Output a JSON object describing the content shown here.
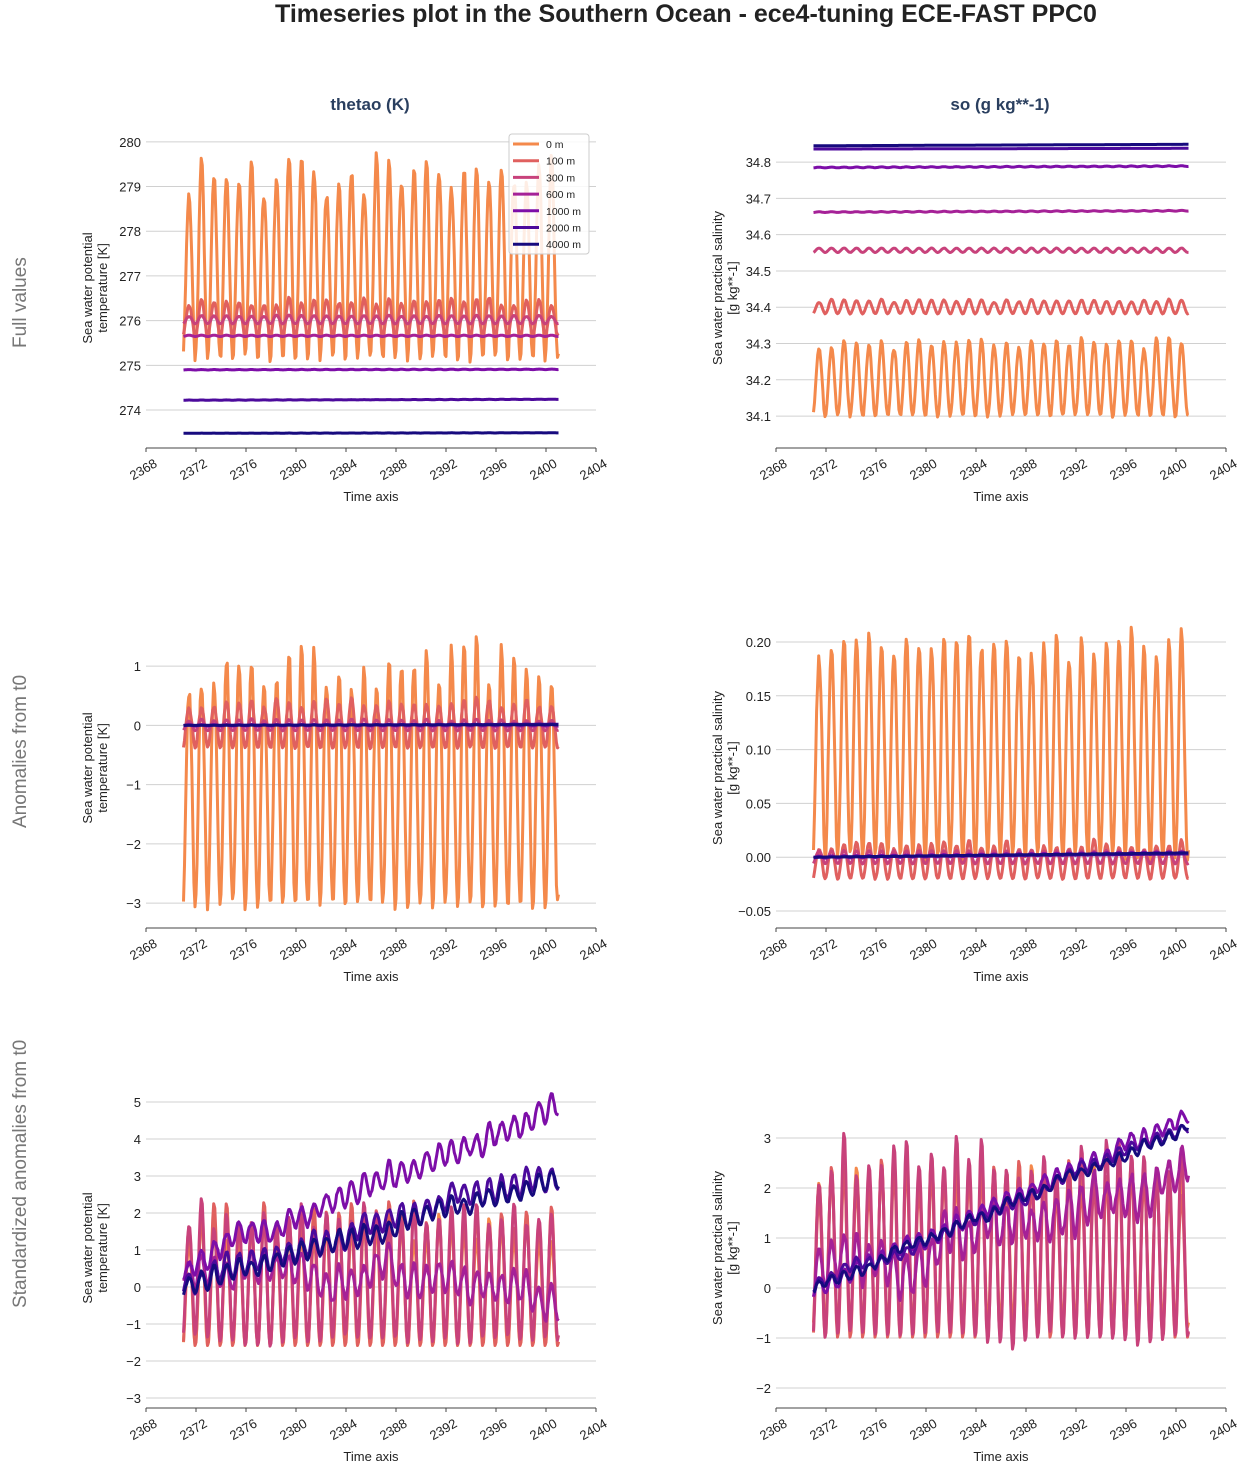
{
  "title": "Timeseries plot in the Southern Ocean - ece4-tuning ECE-FAST PPC0",
  "column_titles": [
    "thetao (K)",
    "so (g kg**-1)"
  ],
  "row_labels": [
    "Full values",
    "Anomalies from t0",
    "Standardized anomalies from t0"
  ],
  "legend": [
    {
      "label": "0 m",
      "color": "#f4894b"
    },
    {
      "label": "100 m",
      "color": "#e0605f"
    },
    {
      "label": "300 m",
      "color": "#c8427b"
    },
    {
      "label": "600 m",
      "color": "#a52197"
    },
    {
      "label": "1000 m",
      "color": "#7d0ea8"
    },
    {
      "label": "2000 m",
      "color": "#4c0a9c"
    },
    {
      "label": "4000 m",
      "color": "#170a7e"
    }
  ],
  "chart_data": [
    {
      "type": "line",
      "panel": "thetao-full",
      "xlabel": "Time axis",
      "ylabel": [
        "Sea water potential",
        "temperature [K]"
      ],
      "xlim": [
        2368,
        2404
      ],
      "xticks": [
        2368,
        2372,
        2376,
        2380,
        2384,
        2388,
        2392,
        2396,
        2400,
        2404
      ],
      "ylim": [
        273.15,
        280.31
      ],
      "yticks": [
        274,
        275,
        276,
        277,
        278,
        279,
        280
      ],
      "ytick_labels": [
        "274",
        "275",
        "276",
        "277",
        "278",
        "279",
        "280"
      ],
      "x_range": [
        2371,
        2401
      ],
      "series": [
        {
          "mean": 277.2,
          "amp": 2.05,
          "peak_var": 0.5,
          "trend": 0,
          "walk": 0
        },
        {
          "mean": 276.05,
          "amp": 0.38,
          "peak_var": 0.1,
          "trend": 0,
          "walk": 0
        },
        {
          "mean": 276.02,
          "amp": 0.09,
          "peak_var": 0.02,
          "trend": 0,
          "walk": 0
        },
        {
          "mean": 275.66,
          "amp": 0.015,
          "peak_var": 0,
          "trend": 0,
          "walk": 0
        },
        {
          "mean": 274.9,
          "amp": 0.005,
          "peak_var": 0,
          "trend": 0.01,
          "walk": 0
        },
        {
          "mean": 274.22,
          "amp": 0.003,
          "peak_var": 0,
          "trend": 0.02,
          "walk": 0
        },
        {
          "mean": 273.48,
          "amp": 0.002,
          "peak_var": 0,
          "trend": 0.01,
          "walk": 0
        }
      ],
      "legend_placement": "top-right"
    },
    {
      "type": "line",
      "panel": "so-full",
      "xlabel": "Time axis",
      "ylabel": [
        "Sea water practical salinity",
        "[g kg**-1]"
      ],
      "xlim": [
        2368,
        2404
      ],
      "xticks": [
        2368,
        2372,
        2376,
        2380,
        2384,
        2388,
        2392,
        2396,
        2400,
        2404
      ],
      "ylim": [
        34.012,
        34.894
      ],
      "yticks": [
        34.1,
        34.2,
        34.3,
        34.4,
        34.5,
        34.6,
        34.7,
        34.8
      ],
      "ytick_labels": [
        "34.1",
        "34.2",
        "34.3",
        "34.4",
        "34.5",
        "34.6",
        "34.7",
        "34.8"
      ],
      "x_range": [
        2371,
        2401
      ],
      "series": [
        {
          "mean": 34.2,
          "amp": 0.1,
          "peak_var": 0.015,
          "trend": 0,
          "walk": 0
        },
        {
          "mean": 34.4,
          "amp": 0.018,
          "peak_var": 0.005,
          "trend": 0,
          "walk": 0
        },
        {
          "mean": 34.557,
          "amp": 0.006,
          "peak_var": 0,
          "trend": 0,
          "walk": 0
        },
        {
          "mean": 34.662,
          "amp": 0.001,
          "peak_var": 0,
          "trend": 0.004,
          "walk": 0
        },
        {
          "mean": 34.785,
          "amp": 0.001,
          "peak_var": 0,
          "trend": 0.004,
          "walk": 0
        },
        {
          "mean": 34.836,
          "amp": 0,
          "peak_var": 0,
          "trend": 0.002,
          "walk": 0
        },
        {
          "mean": 34.845,
          "amp": 0,
          "peak_var": 0,
          "trend": 0.004,
          "walk": 0
        }
      ]
    },
    {
      "type": "line",
      "panel": "thetao-anomalies",
      "xlabel": "Time axis",
      "ylabel": [
        "Sea water potential",
        "temperature [K]"
      ],
      "xlim": [
        2368,
        2404
      ],
      "xticks": [
        2368,
        2372,
        2376,
        2380,
        2384,
        2388,
        2392,
        2396,
        2400,
        2404
      ],
      "ylim": [
        -3.42,
        1.98
      ],
      "yticks": [
        -3,
        -2,
        -1,
        0,
        1
      ],
      "ytick_labels": [
        "−3",
        "−2",
        "−1",
        "0",
        "1"
      ],
      "x_range": [
        2371,
        2401
      ],
      "series": [
        {
          "mean": -1.0,
          "amp": 2.05,
          "peak_var": 0.5,
          "trend": 0,
          "walk": 0
        },
        {
          "mean": 0.0,
          "amp": 0.38,
          "peak_var": 0.1,
          "trend": 0,
          "walk": 0
        },
        {
          "mean": 0.0,
          "amp": 0.09,
          "peak_var": 0.02,
          "trend": 0,
          "walk": 0
        },
        {
          "mean": 0,
          "amp": 0.015,
          "peak_var": 0,
          "trend": 0,
          "walk": 0
        },
        {
          "mean": 0,
          "amp": 0.005,
          "peak_var": 0,
          "trend": 0.01,
          "walk": 0
        },
        {
          "mean": 0,
          "amp": 0.003,
          "peak_var": 0,
          "trend": 0.02,
          "walk": 0
        },
        {
          "mean": 0,
          "amp": 0.002,
          "peak_var": 0,
          "trend": 0.01,
          "walk": 0
        }
      ]
    },
    {
      "type": "line",
      "panel": "so-anomalies",
      "xlabel": "Time axis",
      "ylabel": [
        "Sea water practical salinity",
        "[g kg**-1]"
      ],
      "xlim": [
        2368,
        2404
      ],
      "xticks": [
        2368,
        2372,
        2376,
        2380,
        2384,
        2388,
        2392,
        2396,
        2400,
        2404
      ],
      "ylim": [
        -0.0658,
        0.2316
      ],
      "yticks": [
        -0.05,
        0,
        0.05,
        0.1,
        0.15,
        0.2
      ],
      "ytick_labels": [
        "−0.05",
        "0.00",
        "0.05",
        "0.10",
        "0.15",
        "0.20"
      ],
      "x_range": [
        2371,
        2401
      ],
      "series": [
        {
          "mean": 0.1,
          "amp": 0.1,
          "peak_var": 0.015,
          "trend": 0,
          "walk": 0
        },
        {
          "mean": -0.004,
          "amp": 0.016,
          "peak_var": 0.005,
          "trend": 0,
          "walk": 0
        },
        {
          "mean": 0.0,
          "amp": 0.006,
          "peak_var": 0,
          "trend": 0,
          "walk": 0
        },
        {
          "mean": 0,
          "amp": 0.001,
          "peak_var": 0,
          "trend": 0.004,
          "walk": 0
        },
        {
          "mean": 0,
          "amp": 0.001,
          "peak_var": 0,
          "trend": 0.004,
          "walk": 0
        },
        {
          "mean": 0,
          "amp": 0,
          "peak_var": 0,
          "trend": 0.003,
          "walk": 0
        },
        {
          "mean": 0,
          "amp": 0,
          "peak_var": 0,
          "trend": 0.004,
          "walk": 0
        }
      ]
    },
    {
      "type": "line",
      "panel": "thetao-standardized",
      "xlabel": "Time axis",
      "ylabel": [
        "Sea water potential",
        "temperature [K]"
      ],
      "xlim": [
        2368,
        2404
      ],
      "xticks": [
        2368,
        2372,
        2376,
        2380,
        2384,
        2388,
        2392,
        2396,
        2400,
        2404
      ],
      "ylim": [
        -3.27,
        5.38
      ],
      "yticks": [
        -3,
        -2,
        -1,
        0,
        1,
        2,
        3,
        4,
        5
      ],
      "ytick_labels": [
        "−3",
        "−2",
        "−1",
        "0",
        "1",
        "2",
        "3",
        "4",
        "5"
      ],
      "x_range": [
        2371,
        2401
      ],
      "series": [
        {
          "mean": 0,
          "amp": 1.6,
          "peak_var": 0.4,
          "trend": 0,
          "walk": 0
        },
        {
          "mean": 0.2,
          "amp": 1.8,
          "peak_var": 0.4,
          "trend": 0,
          "walk": 0
        },
        {
          "mean": 0.3,
          "amp": 1.7,
          "peak_var": 0.4,
          "trend": 0,
          "walk": 0.3
        },
        {
          "mean": 0.5,
          "amp": 0.4,
          "peak_var": 0.1,
          "trend": -0.6,
          "walk": 0.6
        },
        {
          "mean": 0.5,
          "amp": 0.3,
          "peak_var": 0.1,
          "trend": 4.4,
          "walk": 0.4
        },
        {
          "mean": 0.2,
          "amp": 0.3,
          "peak_var": 0.1,
          "trend": 2.9,
          "walk": 0.3
        },
        {
          "mean": 0,
          "amp": 0.25,
          "peak_var": 0.1,
          "trend": 3.0,
          "walk": 0.2
        }
      ]
    },
    {
      "type": "line",
      "panel": "so-standardized",
      "xlabel": "Time axis",
      "ylabel": [
        "Sea water practical salinity",
        "[g kg**-1]"
      ],
      "xlim": [
        2368,
        2404
      ],
      "xticks": [
        2368,
        2372,
        2376,
        2380,
        2384,
        2388,
        2392,
        2396,
        2400,
        2404
      ],
      "ylim": [
        -2.4,
        4.0
      ],
      "yticks": [
        -2,
        -1,
        0,
        1,
        2,
        3
      ],
      "ytick_labels": [
        "−2",
        "−1",
        "0",
        "1",
        "2",
        "3"
      ],
      "x_range": [
        2371,
        2401
      ],
      "series": [
        {
          "mean": 0.8,
          "amp": 1.6,
          "peak_var": 0.3,
          "trend": 0,
          "walk": 0
        },
        {
          "mean": 0.6,
          "amp": 1.6,
          "peak_var": 0.4,
          "trend": 0,
          "walk": 0
        },
        {
          "mean": 0.8,
          "amp": 1.8,
          "peak_var": 0.5,
          "trend": 0,
          "walk": 0.2
        },
        {
          "mean": 0.2,
          "amp": 0.4,
          "peak_var": 0.1,
          "trend": 2.0,
          "walk": 0.6
        },
        {
          "mean": 0,
          "amp": 0.15,
          "peak_var": 0,
          "trend": 3.4,
          "walk": 0.2
        },
        {
          "mean": 0,
          "amp": 0.1,
          "peak_var": 0,
          "trend": 3.3,
          "walk": 0.15
        },
        {
          "mean": 0,
          "amp": 0.1,
          "peak_var": 0,
          "trend": 3.2,
          "walk": 0.15
        }
      ]
    }
  ]
}
